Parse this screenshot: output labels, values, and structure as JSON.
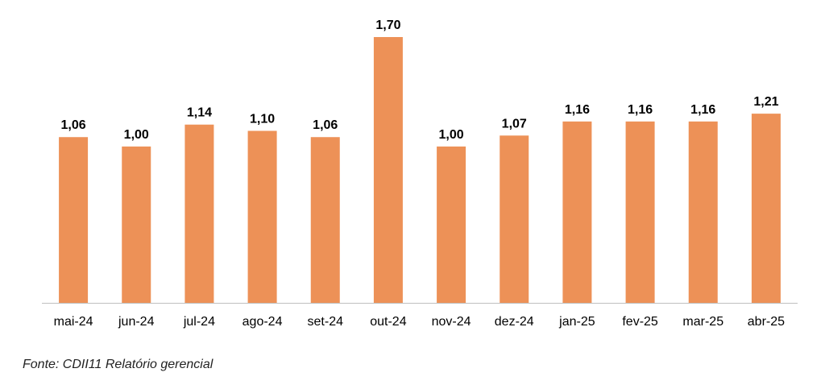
{
  "chart_data": {
    "type": "bar",
    "categories": [
      "mai-24",
      "jun-24",
      "jul-24",
      "ago-24",
      "set-24",
      "out-24",
      "nov-24",
      "dez-24",
      "jan-25",
      "fev-25",
      "mar-25",
      "abr-25"
    ],
    "values": [
      1.06,
      1.0,
      1.14,
      1.1,
      1.06,
      1.7,
      1.0,
      1.07,
      1.16,
      1.16,
      1.16,
      1.21
    ],
    "value_labels": [
      "1,06",
      "1,00",
      "1,14",
      "1,10",
      "1,06",
      "1,70",
      "1,00",
      "1,07",
      "1,16",
      "1,16",
      "1,16",
      "1,21"
    ],
    "title": "",
    "xlabel": "",
    "ylabel": "",
    "ylim": [
      0,
      1.7
    ],
    "grid": false,
    "bar_color": "#ED9157",
    "axis_color": "#BFBFBF"
  },
  "source_note": "Fonte: CDII11 Relatório gerencial"
}
